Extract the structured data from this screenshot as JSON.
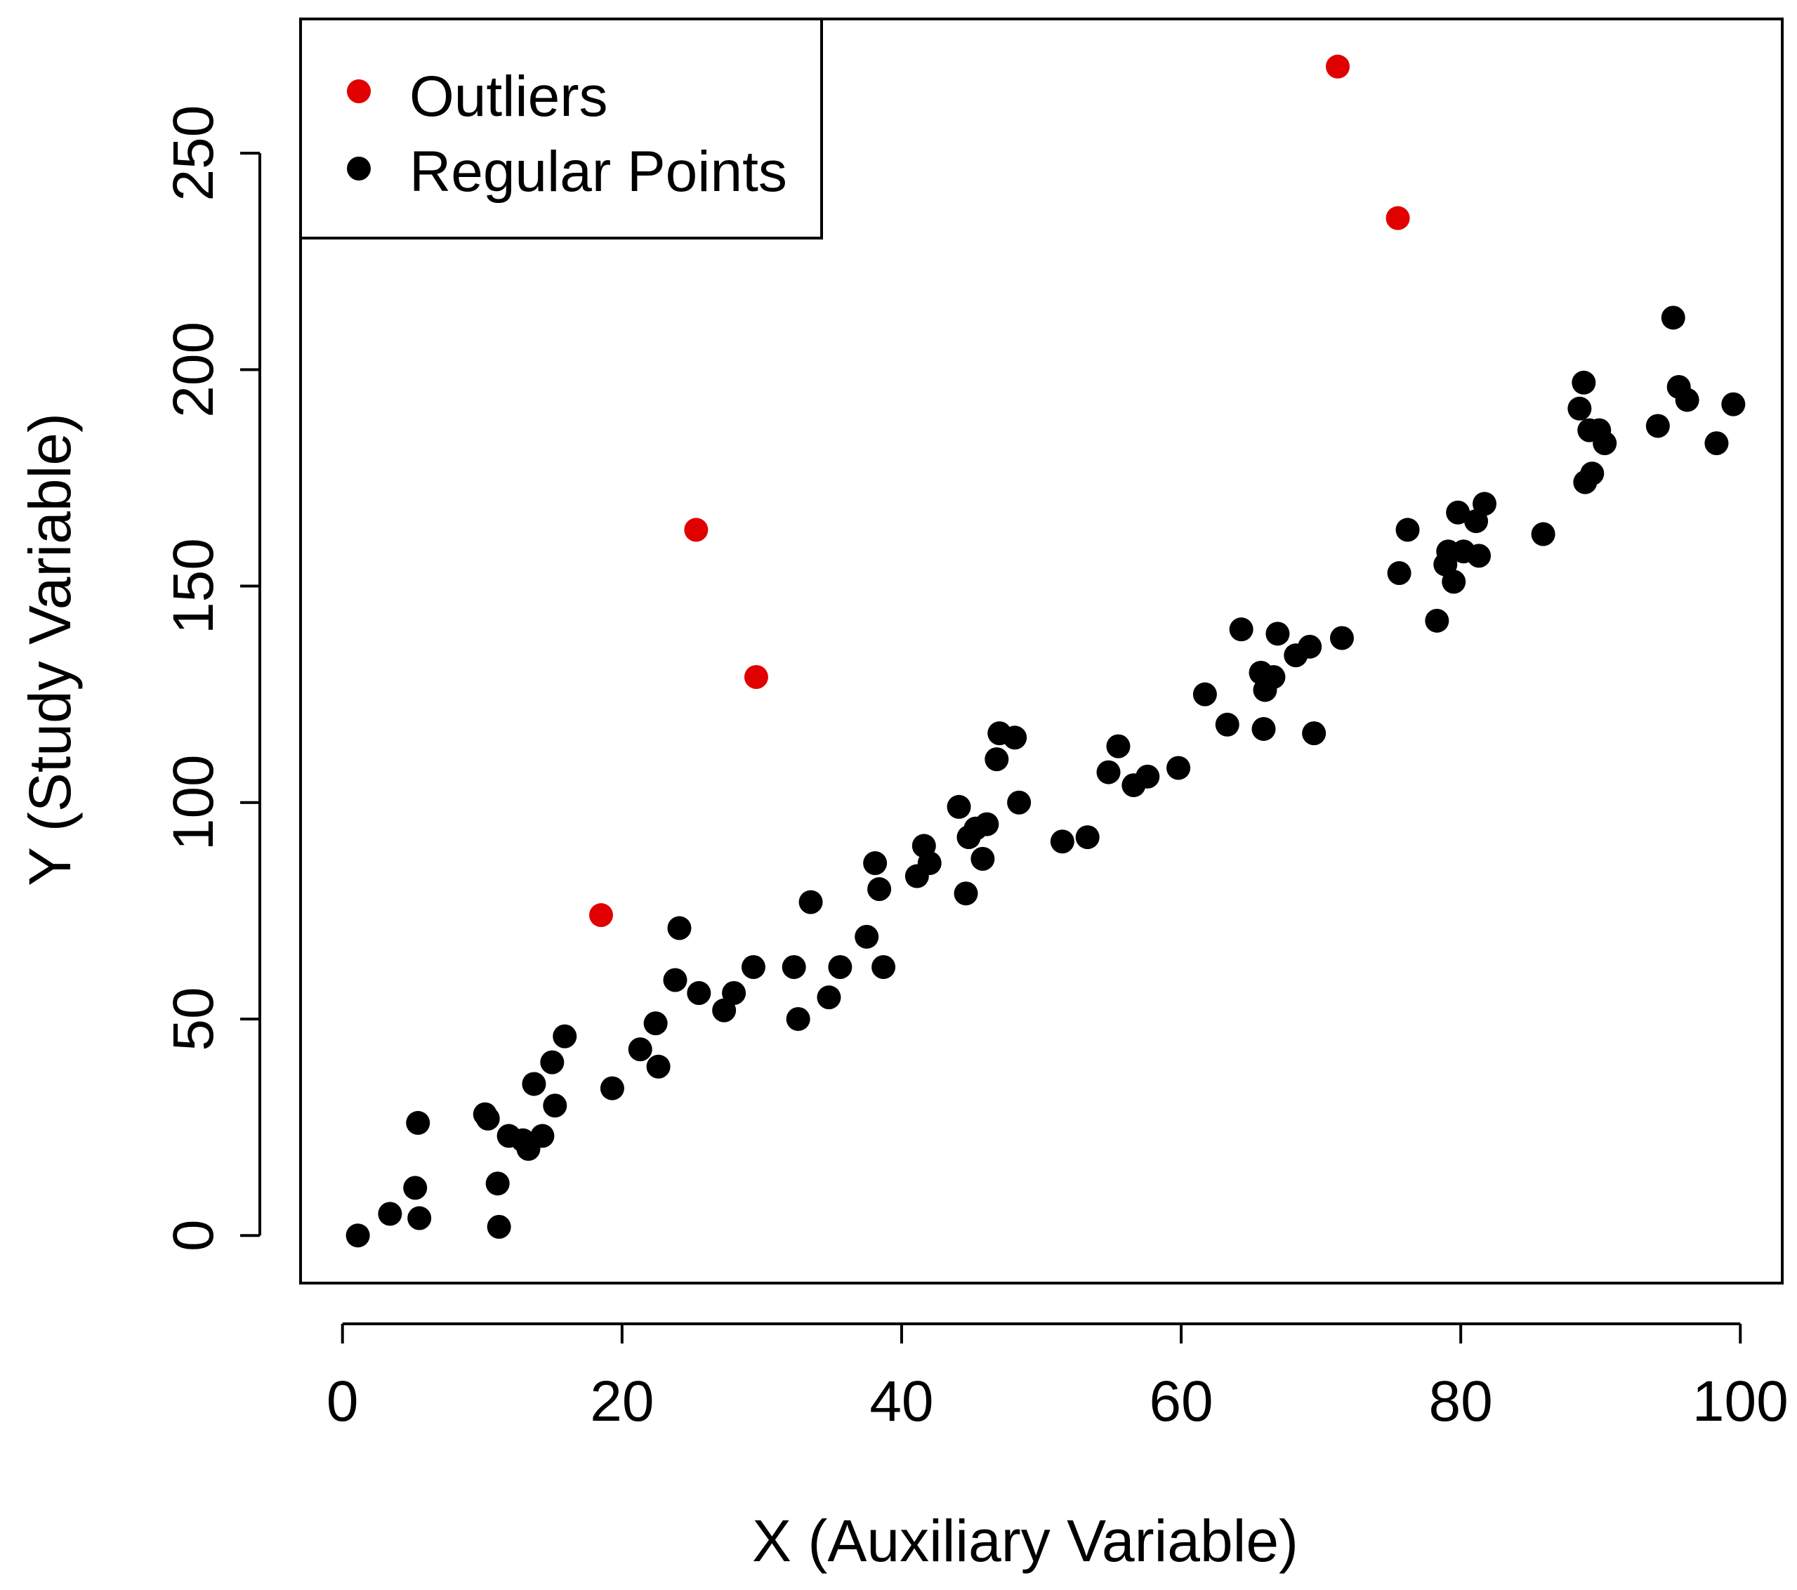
{
  "chart_data": {
    "type": "scatter",
    "title": "",
    "xlabel": "X (Auxiliary Variable)",
    "ylabel": "Y (Study Variable)",
    "xlim": [
      -3,
      103
    ],
    "ylim": [
      -11,
      281
    ],
    "x_ticks": [
      0,
      20,
      40,
      60,
      80,
      100
    ],
    "y_ticks": [
      0,
      50,
      100,
      150,
      200,
      250
    ],
    "x_tick_labels": [
      "0",
      "20",
      "40",
      "60",
      "80",
      "100"
    ],
    "y_tick_labels": [
      "0",
      "50",
      "100",
      "150",
      "200",
      "250"
    ],
    "grid": false,
    "legend": {
      "position": "top-left",
      "box": true
    },
    "series": [
      {
        "name": "Outliers",
        "color": "#e00000",
        "marker": "filled-circle",
        "points": [
          [
            18.5,
            74
          ],
          [
            25.3,
            163
          ],
          [
            29.6,
            129
          ],
          [
            71.2,
            270
          ],
          [
            75.5,
            235
          ]
        ]
      },
      {
        "name": "Regular Points",
        "color": "#000000",
        "marker": "filled-circle",
        "points": [
          [
            1.1,
            0
          ],
          [
            3.4,
            5
          ],
          [
            5.2,
            11
          ],
          [
            5.4,
            26
          ],
          [
            5.5,
            4
          ],
          [
            10.2,
            28
          ],
          [
            10.4,
            27
          ],
          [
            11.1,
            12
          ],
          [
            11.2,
            2
          ],
          [
            11.9,
            23
          ],
          [
            12.9,
            22
          ],
          [
            13.3,
            20
          ],
          [
            13.7,
            35
          ],
          [
            14.3,
            23
          ],
          [
            15.0,
            40
          ],
          [
            15.2,
            30
          ],
          [
            15.9,
            46
          ],
          [
            19.3,
            34
          ],
          [
            21.3,
            43
          ],
          [
            22.4,
            49
          ],
          [
            22.6,
            39
          ],
          [
            23.8,
            59
          ],
          [
            24.1,
            71
          ],
          [
            25.5,
            56
          ],
          [
            27.3,
            52
          ],
          [
            28.0,
            56
          ],
          [
            29.4,
            62
          ],
          [
            32.3,
            62
          ],
          [
            32.6,
            50
          ],
          [
            33.5,
            77
          ],
          [
            34.8,
            55
          ],
          [
            35.6,
            62
          ],
          [
            37.5,
            69
          ],
          [
            38.1,
            86
          ],
          [
            38.4,
            80
          ],
          [
            38.7,
            62
          ],
          [
            41.1,
            83
          ],
          [
            41.6,
            90
          ],
          [
            42.0,
            86
          ],
          [
            44.1,
            99
          ],
          [
            44.6,
            79
          ],
          [
            44.8,
            92
          ],
          [
            45.3,
            94
          ],
          [
            45.8,
            87
          ],
          [
            46.1,
            95
          ],
          [
            46.8,
            110
          ],
          [
            47.0,
            116
          ],
          [
            48.1,
            115
          ],
          [
            48.4,
            100
          ],
          [
            51.5,
            91
          ],
          [
            53.3,
            92
          ],
          [
            54.8,
            107
          ],
          [
            55.5,
            113
          ],
          [
            56.6,
            104
          ],
          [
            57.6,
            106
          ],
          [
            59.8,
            108
          ],
          [
            61.7,
            125
          ],
          [
            63.3,
            118
          ],
          [
            64.3,
            140
          ],
          [
            65.7,
            130
          ],
          [
            65.9,
            117
          ],
          [
            66.0,
            126
          ],
          [
            66.6,
            129
          ],
          [
            66.9,
            139
          ],
          [
            68.2,
            134
          ],
          [
            69.2,
            136
          ],
          [
            69.5,
            116
          ],
          [
            71.5,
            138
          ],
          [
            75.6,
            153
          ],
          [
            76.2,
            163
          ],
          [
            78.3,
            142
          ],
          [
            78.9,
            155
          ],
          [
            79.1,
            158
          ],
          [
            79.5,
            151
          ],
          [
            79.8,
            167
          ],
          [
            80.2,
            158
          ],
          [
            81.1,
            165
          ],
          [
            81.3,
            157
          ],
          [
            81.7,
            169
          ],
          [
            85.9,
            162
          ],
          [
            88.5,
            191
          ],
          [
            88.8,
            197
          ],
          [
            88.9,
            174
          ],
          [
            89.2,
            186
          ],
          [
            89.4,
            176
          ],
          [
            89.9,
            186
          ],
          [
            90.3,
            183
          ],
          [
            94.1,
            187
          ],
          [
            95.2,
            212
          ],
          [
            95.6,
            196
          ],
          [
            96.2,
            193
          ],
          [
            98.3,
            183
          ],
          [
            99.5,
            192
          ]
        ]
      }
    ]
  }
}
